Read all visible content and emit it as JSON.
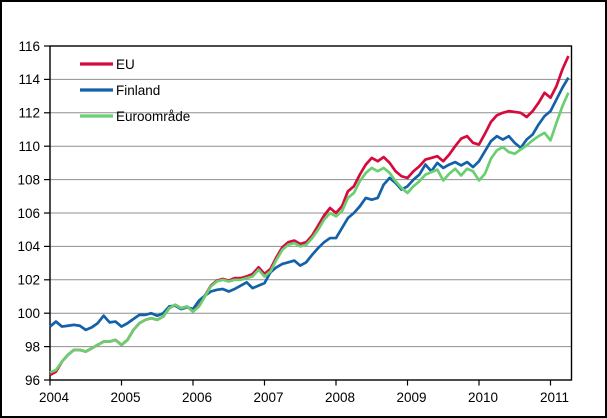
{
  "figure": {
    "background": "#ffffff",
    "outer_border_color": "#000000"
  },
  "legend": {
    "position": "top-left-inside-plot",
    "items": [
      {
        "label": "EU",
        "color": "#d60a3c"
      },
      {
        "label": "Finland",
        "color": "#1361a8"
      },
      {
        "label": "Euroområde",
        "color": "#6bcf70"
      }
    ]
  },
  "chart_data": {
    "type": "line",
    "title": "",
    "xlabel": "",
    "ylabel": "",
    "x_frequency": "monthly",
    "x_start": "2004-01",
    "x_end": "2011-04",
    "x_tick_labels": [
      "2004",
      "2005",
      "2006",
      "2007",
      "2008",
      "2009",
      "2010",
      "2011"
    ],
    "ylim": [
      96,
      116
    ],
    "y_tick_step": 2,
    "y_tick_labels": [
      "96",
      "98",
      "100",
      "102",
      "104",
      "106",
      "108",
      "110",
      "112",
      "114",
      "116"
    ],
    "grid": "horizontal",
    "legend_position": "top-left",
    "axis_color": "#000000",
    "grid_color": "#8f8f8f",
    "series": [
      {
        "name": "EU",
        "color": "#d60a3c",
        "values": [
          96.3,
          96.5,
          97.1,
          97.5,
          97.8,
          97.8,
          97.7,
          97.9,
          98.1,
          98.3,
          98.3,
          98.4,
          98.1,
          98.4,
          99.0,
          99.4,
          99.6,
          99.7,
          99.6,
          99.8,
          100.3,
          100.5,
          100.3,
          100.4,
          100.1,
          100.45,
          101.05,
          101.65,
          101.95,
          102.05,
          101.95,
          102.1,
          102.1,
          102.2,
          102.35,
          102.75,
          102.35,
          102.65,
          103.35,
          103.95,
          104.25,
          104.35,
          104.15,
          104.25,
          104.65,
          105.25,
          105.85,
          106.3,
          106.0,
          106.4,
          107.3,
          107.6,
          108.3,
          108.9,
          109.3,
          109.1,
          109.35,
          109.0,
          108.5,
          108.2,
          108.1,
          108.5,
          108.8,
          109.2,
          109.3,
          109.4,
          109.1,
          109.5,
          110.0,
          110.45,
          110.6,
          110.2,
          110.1,
          110.75,
          111.45,
          111.85,
          112.0,
          112.1,
          112.05,
          112.0,
          111.75,
          112.1,
          112.6,
          113.2,
          112.9,
          113.6,
          114.6,
          115.4
        ]
      },
      {
        "name": "Finland",
        "color": "#1361a8",
        "values": [
          99.2,
          99.5,
          99.2,
          99.25,
          99.3,
          99.25,
          99.0,
          99.15,
          99.4,
          99.85,
          99.45,
          99.5,
          99.2,
          99.4,
          99.65,
          99.9,
          99.9,
          100.0,
          99.85,
          100.0,
          100.4,
          100.45,
          100.25,
          100.35,
          100.25,
          100.75,
          101.05,
          101.3,
          101.4,
          101.45,
          101.3,
          101.45,
          101.65,
          101.85,
          101.5,
          101.65,
          101.8,
          102.45,
          102.75,
          102.95,
          103.05,
          103.15,
          102.85,
          103.05,
          103.5,
          103.9,
          104.25,
          104.5,
          104.5,
          105.1,
          105.7,
          106.0,
          106.4,
          106.9,
          106.8,
          106.9,
          107.7,
          108.1,
          107.8,
          107.4,
          107.6,
          108.0,
          108.3,
          108.9,
          108.5,
          109.0,
          108.7,
          108.9,
          109.05,
          108.85,
          109.05,
          108.75,
          109.1,
          109.7,
          110.3,
          110.6,
          110.4,
          110.6,
          110.2,
          109.9,
          110.4,
          110.7,
          111.3,
          111.8,
          112.1,
          112.8,
          113.5,
          114.1
        ]
      },
      {
        "name": "Euroområde",
        "color": "#6bcf70",
        "values": [
          96.45,
          96.6,
          97.1,
          97.5,
          97.8,
          97.8,
          97.7,
          97.9,
          98.1,
          98.3,
          98.3,
          98.4,
          98.1,
          98.4,
          99.0,
          99.4,
          99.6,
          99.7,
          99.6,
          99.8,
          100.3,
          100.5,
          100.3,
          100.4,
          100.1,
          100.4,
          101.0,
          101.6,
          101.9,
          102.0,
          101.9,
          102.0,
          102.0,
          102.1,
          102.2,
          102.6,
          102.2,
          102.5,
          103.2,
          103.8,
          104.1,
          104.2,
          104.0,
          104.1,
          104.5,
          105.0,
          105.6,
          106.0,
          105.8,
          106.1,
          106.9,
          107.2,
          107.9,
          108.4,
          108.7,
          108.5,
          108.7,
          108.4,
          107.9,
          107.5,
          107.2,
          107.6,
          107.9,
          108.3,
          108.45,
          108.6,
          107.95,
          108.35,
          108.65,
          108.25,
          108.65,
          108.5,
          107.95,
          108.35,
          109.25,
          109.75,
          109.95,
          109.65,
          109.55,
          109.8,
          110.05,
          110.35,
          110.6,
          110.8,
          110.35,
          111.4,
          112.4,
          113.2
        ]
      }
    ]
  }
}
